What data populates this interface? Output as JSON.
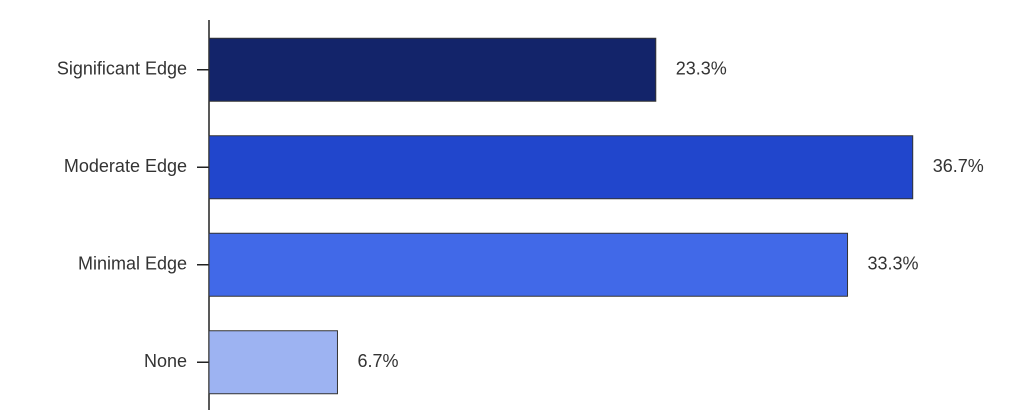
{
  "chart_data": {
    "type": "hbar",
    "categories": [
      "Significant Edge",
      "Moderate Edge",
      "Minimal Edge",
      "None"
    ],
    "values": [
      23.3,
      36.7,
      33.3,
      6.7
    ],
    "value_labels": [
      "23.3%",
      "36.7%",
      "33.3%",
      "6.7%"
    ],
    "colors": [
      "#13246a",
      "#2146cc",
      "#4169e8",
      "#9db3f2"
    ],
    "xlim": [
      0,
      40
    ]
  }
}
